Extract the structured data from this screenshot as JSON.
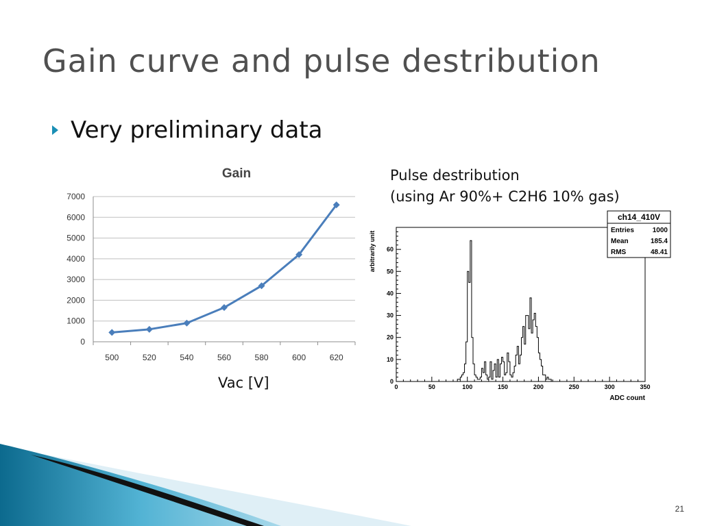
{
  "slide": {
    "title": "Gain curve and pulse destribution",
    "bullet": "Very preliminary data",
    "pulse_caption_line1": "Pulse destribution",
    "pulse_caption_line2": "(using Ar 90%+ C2H6 10% gas)",
    "gain_xlabel": "Vac [V]",
    "page_number": "21"
  },
  "colors": {
    "title": "#505050",
    "bullet": "#1a8fb5",
    "gain_line": "#4a7ebb",
    "histogram": "#000000"
  },
  "chart_data": [
    {
      "type": "line",
      "title": "Gain",
      "xlabel": "",
      "ylabel": "",
      "categories": [
        "500",
        "520",
        "540",
        "560",
        "580",
        "600",
        "620"
      ],
      "series": [
        {
          "values": [
            450,
            600,
            900,
            1650,
            2700,
            4200,
            6600
          ]
        }
      ],
      "ylim": [
        0,
        7000
      ],
      "yticks": [
        0,
        1000,
        2000,
        3000,
        4000,
        5000,
        6000,
        7000
      ],
      "grid": true,
      "marker": "diamond"
    },
    {
      "type": "bar",
      "subtype": "histogram",
      "title": "",
      "xlabel": "ADC count",
      "ylabel": "arbitrarily unit",
      "xlim": [
        0,
        350
      ],
      "ylim": [
        0,
        70
      ],
      "xticks": [
        0,
        50,
        100,
        150,
        200,
        250,
        300,
        350
      ],
      "yticks": [
        0,
        10,
        20,
        30,
        40,
        50,
        60
      ],
      "bin_width": 2,
      "bin_start": 0,
      "values": [
        0,
        0,
        0,
        0,
        0,
        0,
        0,
        0,
        0,
        0,
        0,
        0,
        0,
        0,
        0,
        0,
        0,
        0,
        0,
        0,
        0,
        0,
        0,
        0,
        0,
        0,
        0,
        0,
        0,
        0,
        0,
        0,
        0,
        0,
        0,
        0,
        0,
        0,
        0,
        0,
        0,
        0,
        0,
        1,
        1,
        2,
        3,
        4,
        8,
        18,
        50,
        45,
        64,
        20,
        8,
        3,
        2,
        1,
        1,
        2,
        6,
        4,
        9,
        3,
        1,
        2,
        9,
        1,
        5,
        8,
        2,
        10,
        2,
        8,
        11,
        9,
        3,
        4,
        13,
        9,
        3,
        2,
        4,
        7,
        12,
        16,
        8,
        12,
        20,
        25,
        17,
        30,
        30,
        24,
        38,
        22,
        28,
        31,
        25,
        20,
        13,
        10,
        7,
        3,
        3,
        1,
        2,
        1,
        1,
        0,
        0,
        0,
        0,
        0,
        0,
        0,
        0,
        0,
        0,
        0,
        0,
        0,
        0,
        0,
        0,
        0,
        0,
        0,
        0,
        0,
        0,
        0,
        0,
        0,
        0,
        0,
        0,
        0,
        0,
        0,
        0,
        0,
        0,
        0,
        0,
        0,
        0,
        0,
        0,
        0,
        0,
        0,
        0,
        0,
        0,
        0,
        0,
        0,
        0,
        0,
        0,
        0,
        0,
        0,
        0,
        0,
        0,
        0,
        0,
        0,
        0,
        0,
        0,
        0,
        0
      ],
      "stats": {
        "name": "ch14_410V",
        "rows": [
          {
            "label": "Entries",
            "value": "1000"
          },
          {
            "label": "Mean",
            "value": "185.4"
          },
          {
            "label": "RMS",
            "value": "48.41"
          }
        ]
      }
    }
  ]
}
